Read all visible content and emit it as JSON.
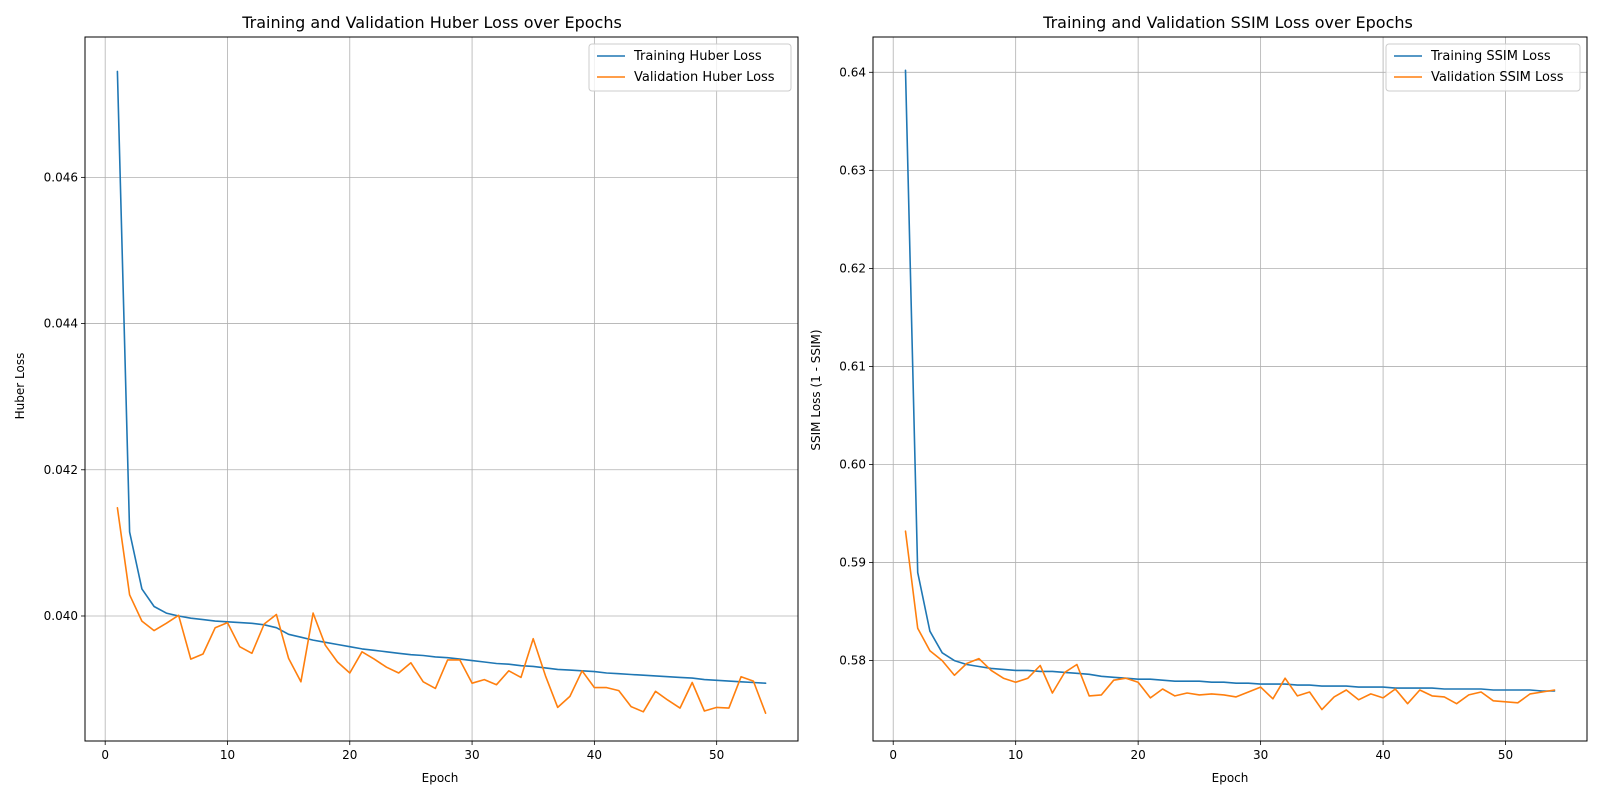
{
  "chart_data": [
    {
      "type": "line",
      "title": "Training and Validation Huber Loss over Epochs",
      "xlabel": "Epoch",
      "ylabel": "Huber Loss",
      "xlim": [
        -1.65,
        56.65
      ],
      "ylim": [
        0.03829,
        0.04792
      ],
      "xticks": [
        0,
        10,
        20,
        30,
        40,
        50
      ],
      "yticks": [
        0.04,
        0.042,
        0.044,
        0.046
      ],
      "ytick_labels": [
        "0.040",
        "0.042",
        "0.044",
        "0.046"
      ],
      "grid": true,
      "legend_position": "top-right",
      "series": [
        {
          "name": "Training Huber Loss",
          "color": "#1f77b4",
          "x": [
            1,
            2,
            3,
            4,
            5,
            6,
            7,
            8,
            9,
            10,
            11,
            12,
            13,
            14,
            15,
            16,
            17,
            18,
            19,
            20,
            21,
            22,
            23,
            24,
            25,
            26,
            27,
            28,
            29,
            30,
            31,
            32,
            33,
            34,
            35,
            36,
            37,
            38,
            39,
            40,
            41,
            42,
            43,
            44,
            45,
            46,
            47,
            48,
            49,
            50,
            51,
            52,
            53,
            54
          ],
          "values": [
            0.04745,
            0.04115,
            0.04037,
            0.04013,
            0.04004,
            0.04,
            0.03997,
            0.03995,
            0.03993,
            0.03992,
            0.03991,
            0.0399,
            0.03988,
            0.03984,
            0.03975,
            0.03971,
            0.03967,
            0.03964,
            0.03961,
            0.03958,
            0.03955,
            0.03953,
            0.03951,
            0.03949,
            0.03947,
            0.03946,
            0.03944,
            0.03943,
            0.03941,
            0.03939,
            0.03937,
            0.03935,
            0.03934,
            0.03932,
            0.03931,
            0.03929,
            0.03927,
            0.03926,
            0.03925,
            0.03924,
            0.03922,
            0.03921,
            0.0392,
            0.03919,
            0.03918,
            0.03917,
            0.03916,
            0.03915,
            0.03913,
            0.03912,
            0.03911,
            0.0391,
            0.03909,
            0.03908
          ]
        },
        {
          "name": "Validation Huber Loss",
          "color": "#ff7f0e",
          "x": [
            1,
            2,
            3,
            4,
            5,
            6,
            7,
            8,
            9,
            10,
            11,
            12,
            13,
            14,
            15,
            16,
            17,
            18,
            19,
            20,
            21,
            22,
            23,
            24,
            25,
            26,
            27,
            28,
            29,
            30,
            31,
            32,
            33,
            34,
            35,
            36,
            37,
            38,
            39,
            40,
            41,
            42,
            43,
            44,
            45,
            46,
            47,
            48,
            49,
            50,
            51,
            52,
            53,
            54
          ],
          "values": [
            0.04148,
            0.04029,
            0.03993,
            0.0398,
            0.0399,
            0.04001,
            0.03941,
            0.03948,
            0.03984,
            0.03991,
            0.03958,
            0.03949,
            0.03989,
            0.04002,
            0.03942,
            0.0391,
            0.04004,
            0.0396,
            0.03937,
            0.03922,
            0.03951,
            0.03941,
            0.0393,
            0.03922,
            0.03936,
            0.0391,
            0.03901,
            0.0394,
            0.0394,
            0.03908,
            0.03913,
            0.03906,
            0.03925,
            0.03916,
            0.03969,
            0.03918,
            0.03875,
            0.0389,
            0.03925,
            0.03902,
            0.03902,
            0.03898,
            0.03876,
            0.03869,
            0.03897,
            0.03885,
            0.03874,
            0.03909,
            0.0387,
            0.03875,
            0.03874,
            0.03917,
            0.03911,
            0.03867
          ]
        }
      ]
    },
    {
      "type": "line",
      "title": "Training and Validation SSIM Loss over Epochs",
      "xlabel": "Epoch",
      "ylabel": "SSIM Loss (1 - SSIM)",
      "xlim": [
        -1.65,
        56.65
      ],
      "ylim": [
        0.5718,
        0.6436
      ],
      "xticks": [
        0,
        10,
        20,
        30,
        40,
        50
      ],
      "yticks": [
        0.58,
        0.59,
        0.6,
        0.61,
        0.62,
        0.63,
        0.64
      ],
      "ytick_labels": [
        "0.58",
        "0.59",
        "0.60",
        "0.61",
        "0.62",
        "0.63",
        "0.64"
      ],
      "grid": true,
      "legend_position": "top-right",
      "series": [
        {
          "name": "Training SSIM Loss",
          "color": "#1f77b4",
          "x": [
            1,
            2,
            3,
            4,
            5,
            6,
            7,
            8,
            9,
            10,
            11,
            12,
            13,
            14,
            15,
            16,
            17,
            18,
            19,
            20,
            21,
            22,
            23,
            24,
            25,
            26,
            27,
            28,
            29,
            30,
            31,
            32,
            33,
            34,
            35,
            36,
            37,
            38,
            39,
            40,
            41,
            42,
            43,
            44,
            45,
            46,
            47,
            48,
            49,
            50,
            51,
            52,
            53,
            54
          ],
          "values": [
            0.6402,
            0.589,
            0.583,
            0.5808,
            0.58,
            0.5796,
            0.5794,
            0.5792,
            0.5791,
            0.579,
            0.579,
            0.5789,
            0.5789,
            0.5788,
            0.5787,
            0.5786,
            0.5784,
            0.5783,
            0.5782,
            0.5781,
            0.5781,
            0.578,
            0.5779,
            0.5779,
            0.5779,
            0.5778,
            0.5778,
            0.5777,
            0.5777,
            0.5776,
            0.5776,
            0.5776,
            0.5775,
            0.5775,
            0.5774,
            0.5774,
            0.5774,
            0.5773,
            0.5773,
            0.5773,
            0.5772,
            0.5772,
            0.5772,
            0.5772,
            0.5771,
            0.5771,
            0.5771,
            0.5771,
            0.577,
            0.577,
            0.577,
            0.577,
            0.5769,
            0.5769
          ]
        },
        {
          "name": "Validation SSIM Loss",
          "color": "#ff7f0e",
          "x": [
            1,
            2,
            3,
            4,
            5,
            6,
            7,
            8,
            9,
            10,
            11,
            12,
            13,
            14,
            15,
            16,
            17,
            18,
            19,
            20,
            21,
            22,
            23,
            24,
            25,
            26,
            27,
            28,
            29,
            30,
            31,
            32,
            33,
            34,
            35,
            36,
            37,
            38,
            39,
            40,
            41,
            42,
            43,
            44,
            45,
            46,
            47,
            48,
            49,
            50,
            51,
            52,
            53,
            54
          ],
          "values": [
            0.5932,
            0.5833,
            0.581,
            0.58,
            0.5785,
            0.5797,
            0.5802,
            0.579,
            0.5782,
            0.5778,
            0.5782,
            0.5795,
            0.5767,
            0.5788,
            0.5796,
            0.5764,
            0.5765,
            0.578,
            0.5782,
            0.5778,
            0.5762,
            0.5771,
            0.5764,
            0.5767,
            0.5765,
            0.5766,
            0.5765,
            0.5763,
            0.5768,
            0.5773,
            0.5761,
            0.5782,
            0.5764,
            0.5768,
            0.575,
            0.5763,
            0.577,
            0.576,
            0.5766,
            0.5762,
            0.5771,
            0.5756,
            0.577,
            0.5764,
            0.5763,
            0.5756,
            0.5765,
            0.5768,
            0.5759,
            0.5758,
            0.5757,
            0.5766,
            0.5768,
            0.577
          ]
        }
      ]
    }
  ]
}
